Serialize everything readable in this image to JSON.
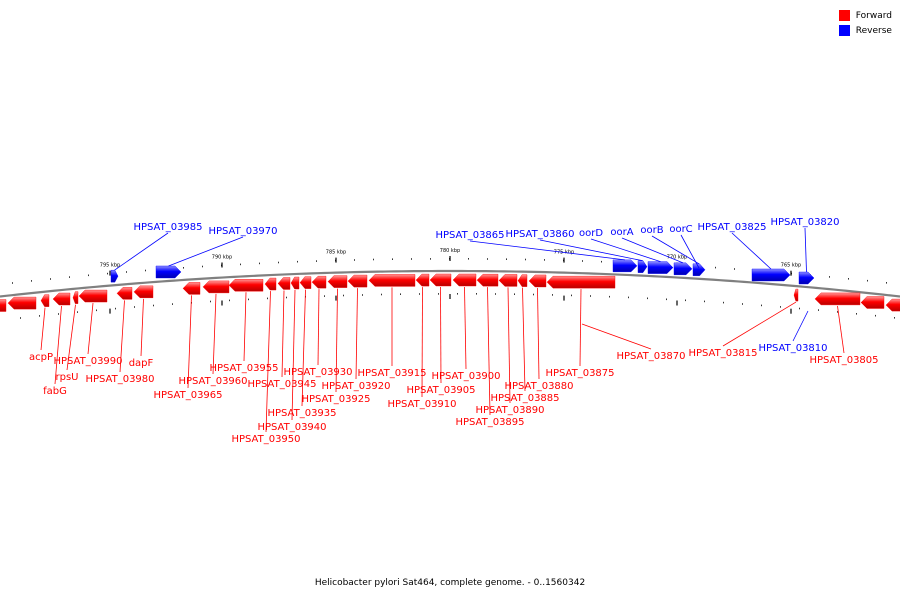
{
  "caption": "Helicobacter pylori Sat464, complete genome. - 0..1560342",
  "legend": [
    {
      "label": "Forward",
      "color": "#ff0000"
    },
    {
      "label": "Reverse",
      "color": "#0000ff"
    }
  ],
  "colors": {
    "forward": "#ff0000",
    "reverse": "#0000ff",
    "backbone": "#808080"
  },
  "ticks": [
    "795 kbp",
    "790 kbp",
    "785 kbp",
    "780 kbp",
    "775 kbp",
    "770 kbp",
    "765 kbp"
  ],
  "genes": {
    "forward": [
      "acpP",
      "fabG",
      "rpsU",
      "HPSAT_03990",
      "HPSAT_03980",
      "dapF",
      "HPSAT_03965",
      "HPSAT_03960",
      "HPSAT_03955",
      "HPSAT_03950",
      "HPSAT_03945",
      "HPSAT_03940",
      "HPSAT_03935",
      "HPSAT_03930",
      "HPSAT_03925",
      "HPSAT_03920",
      "HPSAT_03915",
      "HPSAT_03910",
      "HPSAT_03905",
      "HPSAT_03900",
      "HPSAT_03895",
      "HPSAT_03890",
      "HPSAT_03885",
      "HPSAT_03880",
      "HPSAT_03875",
      "HPSAT_03870",
      "HPSAT_03815",
      "HPSAT_03805"
    ],
    "reverse": [
      "HPSAT_03985",
      "HPSAT_03970",
      "HPSAT_03865",
      "HPSAT_03860",
      "oorD",
      "oorA",
      "oorB",
      "oorC",
      "HPSAT_03825",
      "HPSAT_03820",
      "HPSAT_03810"
    ]
  }
}
